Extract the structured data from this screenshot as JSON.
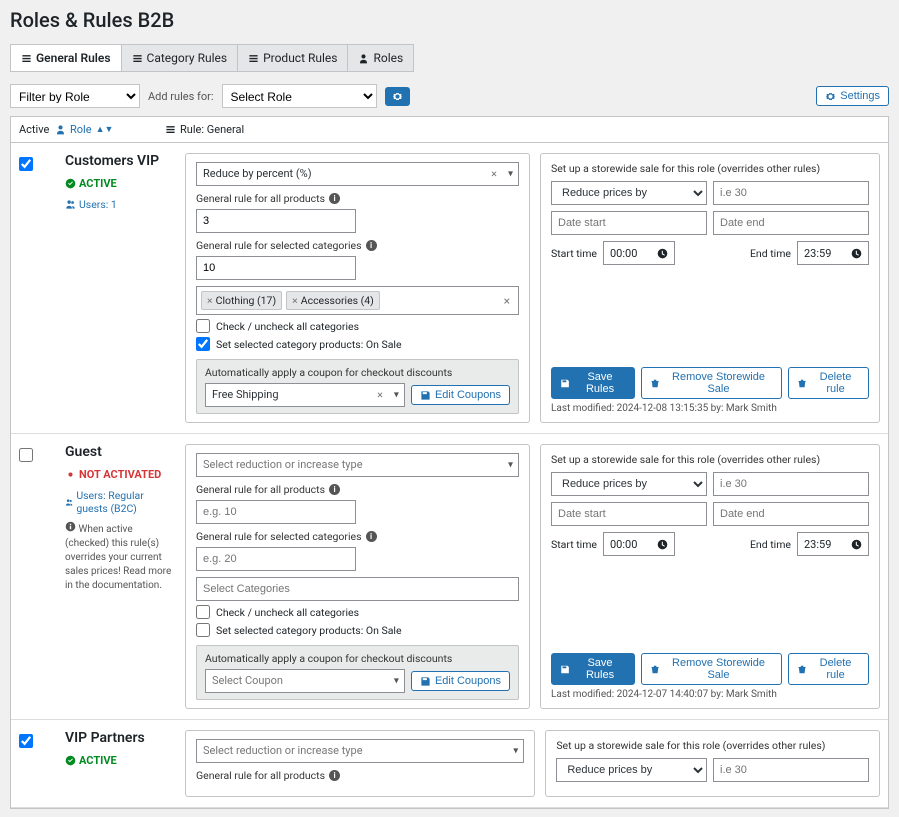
{
  "page_title": "Roles & Rules B2B",
  "tabs": {
    "general": "General Rules",
    "category": "Category Rules",
    "product": "Product Rules",
    "roles": "Roles"
  },
  "filter": {
    "filter_placeholder": "Filter by Role",
    "add_rules_for": "Add rules for:",
    "select_role": "Select Role"
  },
  "settings_btn": "Settings",
  "columns": {
    "active": "Active",
    "role": "Role",
    "rule": "Rule: General"
  },
  "labels": {
    "general_all": "General rule for all products",
    "general_selected": "General rule for selected categories",
    "check_uncheck": "Check / uncheck all categories",
    "set_on_sale": "Set selected category products: On Sale",
    "coupon_auto": "Automatically apply a coupon for checkout discounts",
    "edit_coupons": "Edit Coupons",
    "storewide_text": "Set up a storewide sale for this role (overrides other rules)",
    "reduce_by": "Reduce prices by",
    "ie_ph": "i.e 30",
    "date_start": "Date start",
    "date_end": "Date end",
    "start_time": "Start time",
    "end_time": "End time",
    "t_start": "00:00",
    "t_end": "23:59",
    "save_rules": "Save Rules",
    "remove_sale": "Remove Storewide Sale",
    "delete_rule": "Delete rule",
    "select_reduction": "Select reduction or increase type",
    "select_categories_ph": "Select Categories",
    "select_coupon_ph": "Select Coupon",
    "eg10": "e.g. 10",
    "eg20": "e.g. 20"
  },
  "rows": [
    {
      "checked": true,
      "name": "Customers VIP",
      "status": "ACTIVE",
      "status_kind": "active",
      "users_text": "Users: 1",
      "hint": "",
      "reduction_value": "Reduce by percent (%)",
      "all_value": "3",
      "selected_value": "10",
      "chips": [
        "Clothing  (17)",
        "Accessories  (4)"
      ],
      "on_sale_checked": true,
      "coupon_value": "Free Shipping",
      "meta": "Last modified: 2024-12-08 13:15:35 by: Mark Smith"
    },
    {
      "checked": false,
      "name": "Guest",
      "status": "NOT ACTIVATED",
      "status_kind": "inactive",
      "users_text": "Users: Regular guests (B2C)",
      "hint": "When active (checked) this rule(s) overrides your current sales prices! Read more in the documentation.",
      "reduction_value": "",
      "all_value": "",
      "selected_value": "",
      "chips": [],
      "on_sale_checked": false,
      "coupon_value": "",
      "meta": "Last modified: 2024-12-07 14:40:07 by: Mark Smith"
    },
    {
      "checked": true,
      "name": "VIP Partners",
      "status": "ACTIVE",
      "status_kind": "active",
      "users_text": "",
      "hint": "",
      "reduction_value": "",
      "all_value": "",
      "selected_value": "",
      "chips": [],
      "on_sale_checked": false,
      "coupon_value": "",
      "meta": ""
    }
  ]
}
